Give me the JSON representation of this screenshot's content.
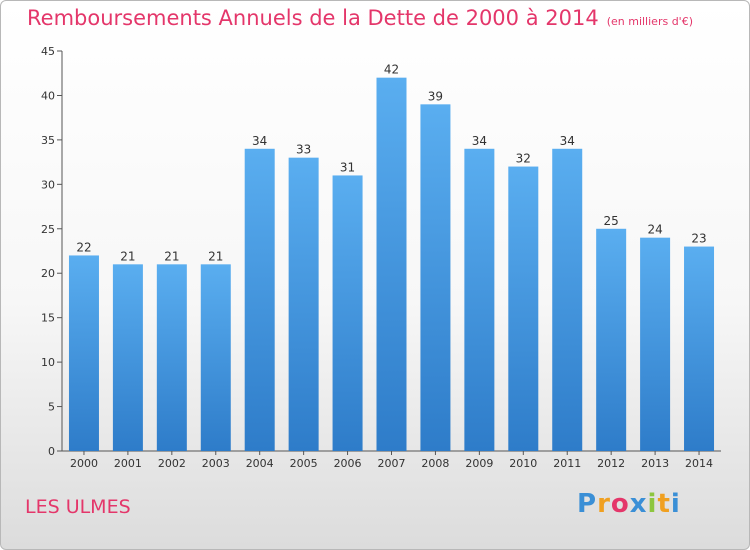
{
  "title": "Remboursements Annuels de la Dette de 2000 à 2014",
  "subtitle": "(en milliers d'€)",
  "commune": "LES ULMES",
  "logo": {
    "text": "Proxiti",
    "letters": [
      "P",
      "r",
      "o",
      "x",
      "i",
      "t",
      "i"
    ],
    "colors": [
      "#3a8fd6",
      "#f0a020",
      "#e4366a",
      "#3a8fd6",
      "#8dc63f",
      "#f0a020",
      "#3a8fd6"
    ]
  },
  "colors": {
    "accent": "#e4366a",
    "bar_top": "#5aaef0",
    "bar_bottom": "#2e7cc9"
  },
  "chart_data": {
    "type": "bar",
    "categories": [
      "2000",
      "2001",
      "2002",
      "2003",
      "2004",
      "2005",
      "2006",
      "2007",
      "2008",
      "2009",
      "2010",
      "2011",
      "2012",
      "2013",
      "2014"
    ],
    "values": [
      22,
      21,
      21,
      21,
      34,
      33,
      31,
      42,
      39,
      34,
      32,
      34,
      25,
      24,
      23
    ],
    "title": "Remboursements Annuels de la Dette de 2000 à 2014",
    "subtitle": "(en milliers d'€)",
    "xlabel": "",
    "ylabel": "",
    "ylim": [
      0,
      45
    ],
    "yticks": [
      0,
      5,
      10,
      15,
      20,
      25,
      30,
      35,
      40,
      45
    ],
    "grid": false,
    "legend": "none"
  }
}
